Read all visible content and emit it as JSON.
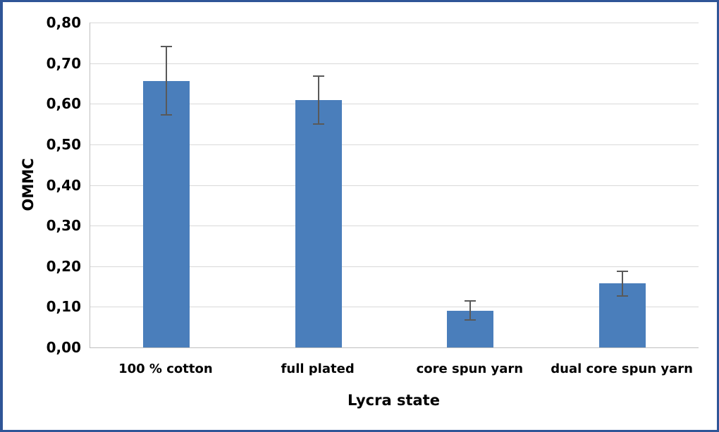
{
  "chart_data": {
    "type": "bar",
    "title": "",
    "xlabel": "Lycra state",
    "ylabel": "OMMC",
    "ylim": [
      0,
      0.8
    ],
    "yticks": [
      "0,00",
      "0,10",
      "0,20",
      "0,30",
      "0,40",
      "0,50",
      "0,60",
      "0,70",
      "0,80"
    ],
    "grid": true,
    "legend": null,
    "categories": [
      "100 % cotton",
      "full plated",
      "core spun yarn",
      "dual core spun yarn"
    ],
    "values": [
      0.656,
      0.609,
      0.09,
      0.158
    ],
    "error_bars": {
      "upper": [
        0.741,
        0.668,
        0.115,
        0.188
      ],
      "lower": [
        0.573,
        0.55,
        0.068,
        0.127
      ]
    },
    "bar_color": "#4a7ebb"
  },
  "colors": {
    "frame_border": "#2f5597",
    "bar": "#4a7ebb",
    "gridline": "#d9d9d9",
    "error_bar": "#595959"
  }
}
